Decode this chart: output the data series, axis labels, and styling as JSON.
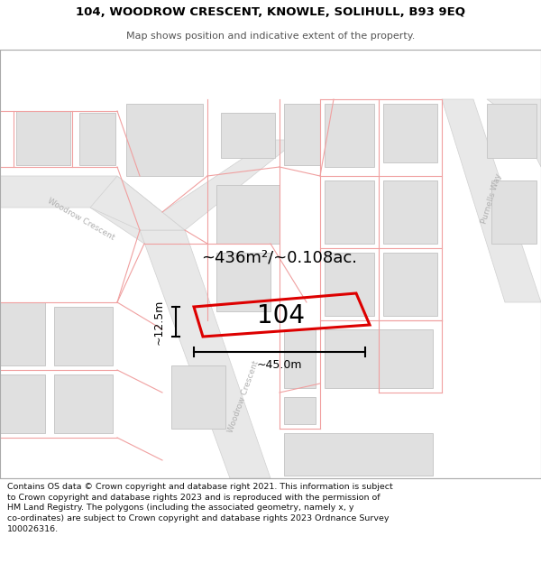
{
  "title_line1": "104, WOODROW CRESCENT, KNOWLE, SOLIHULL, B93 9EQ",
  "title_line2": "Map shows position and indicative extent of the property.",
  "footer_text": "Contains OS data © Crown copyright and database right 2021. This information is subject\nto Crown copyright and database rights 2023 and is reproduced with the permission of\nHM Land Registry. The polygons (including the associated geometry, namely x, y\nco-ordinates) are subject to Crown copyright and database rights 2023 Ordnance Survey\n100026316.",
  "property_label": "104",
  "area_text": "~436m²/~0.108ac.",
  "width_label": "~45.0m",
  "height_label": "~12.5m",
  "map_bg": "#f7f7f7",
  "title_bg": "#ffffff",
  "footer_bg": "#ffffff",
  "plot_outline_color": "#dd0000",
  "building_fill": "#e0e0e0",
  "building_edge": "#c8c8c8",
  "road_fill": "#e8e8e8",
  "boundary_color": "#f0a0a0",
  "road_label_color": "#b0b0b0",
  "dim_line_color": "#000000",
  "text_color": "#000000"
}
